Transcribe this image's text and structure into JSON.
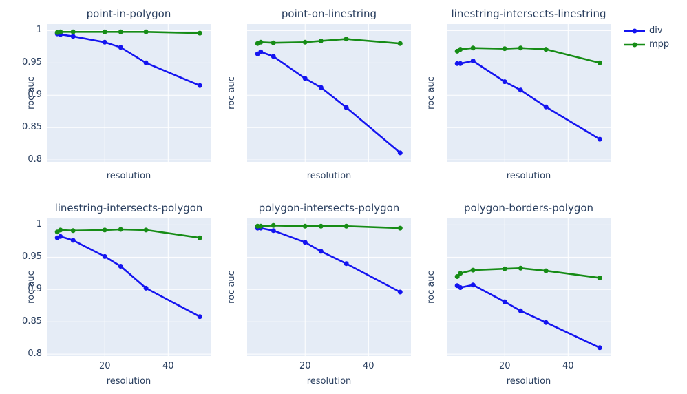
{
  "figure": {
    "colors": {
      "background": "#ffffff",
      "plot_background": "#e5ecf6",
      "grid": "#ffffff",
      "text": "#2a3f5f",
      "div": "#1414f0",
      "mpp": "#168c16"
    }
  },
  "legend": {
    "items": [
      {
        "name": "div",
        "label": "div",
        "color": "#1414f0"
      },
      {
        "name": "mpp",
        "label": "mpp",
        "color": "#168c16"
      }
    ]
  },
  "chart_data": {
    "type": "line",
    "layout": "2 rows x 3 cols small multiples, shared axes",
    "xlabel": "resolution",
    "ylabel": "roc auc",
    "x": [
      5,
      6,
      10,
      20,
      25,
      33,
      50
    ],
    "x_ticks": [
      20,
      40
    ],
    "y_ticks": [
      {
        "v": 1,
        "label": "1"
      },
      {
        "v": 0.95,
        "label": "0.95"
      },
      {
        "v": 0.9,
        "label": "0.9"
      },
      {
        "v": 0.85,
        "label": "0.85"
      },
      {
        "v": 0.8,
        "label": "0.8"
      }
    ],
    "x_range": [
      1.7,
      53.4
    ],
    "y_range": [
      0.797,
      1.01
    ],
    "grid": true,
    "legend_position": "top-right",
    "marker_radius": 3.5,
    "line_width": 2.6,
    "subplots": [
      {
        "title": "point-in-polygon",
        "row": 0,
        "col": 0,
        "series": [
          {
            "name": "div",
            "values": [
              0.995,
              0.994,
              0.991,
              0.982,
              0.974,
              0.95,
              0.915
            ]
          },
          {
            "name": "mpp",
            "values": [
              0.997,
              0.998,
              0.998,
              0.998,
              0.998,
              0.998,
              0.996
            ]
          }
        ]
      },
      {
        "title": "point-on-linestring",
        "row": 0,
        "col": 1,
        "series": [
          {
            "name": "div",
            "values": [
              0.964,
              0.967,
              0.96,
              0.926,
              0.912,
              0.881,
              0.811
            ]
          },
          {
            "name": "mpp",
            "values": [
              0.98,
              0.982,
              0.981,
              0.982,
              0.984,
              0.987,
              0.98
            ]
          }
        ]
      },
      {
        "title": "linestring-intersects-linestring",
        "row": 0,
        "col": 2,
        "series": [
          {
            "name": "div",
            "values": [
              0.949,
              0.949,
              0.953,
              0.921,
              0.908,
              0.882,
              0.832
            ]
          },
          {
            "name": "mpp",
            "values": [
              0.968,
              0.971,
              0.973,
              0.972,
              0.973,
              0.971,
              0.95
            ]
          }
        ]
      },
      {
        "title": "linestring-intersects-polygon",
        "row": 1,
        "col": 0,
        "series": [
          {
            "name": "div",
            "values": [
              0.98,
              0.982,
              0.976,
              0.951,
              0.936,
              0.902,
              0.858
            ]
          },
          {
            "name": "mpp",
            "values": [
              0.989,
              0.992,
              0.991,
              0.992,
              0.993,
              0.992,
              0.98
            ]
          }
        ]
      },
      {
        "title": "polygon-intersects-polygon",
        "row": 1,
        "col": 1,
        "series": [
          {
            "name": "div",
            "values": [
              0.995,
              0.995,
              0.991,
              0.973,
              0.959,
              0.94,
              0.896
            ]
          },
          {
            "name": "mpp",
            "values": [
              0.998,
              0.998,
              0.999,
              0.998,
              0.998,
              0.998,
              0.995
            ]
          }
        ]
      },
      {
        "title": "polygon-borders-polygon",
        "row": 1,
        "col": 2,
        "series": [
          {
            "name": "div",
            "values": [
              0.906,
              0.903,
              0.907,
              0.881,
              0.867,
              0.849,
              0.81
            ]
          },
          {
            "name": "mpp",
            "values": [
              0.92,
              0.925,
              0.93,
              0.932,
              0.933,
              0.929,
              0.918
            ]
          }
        ]
      }
    ]
  }
}
